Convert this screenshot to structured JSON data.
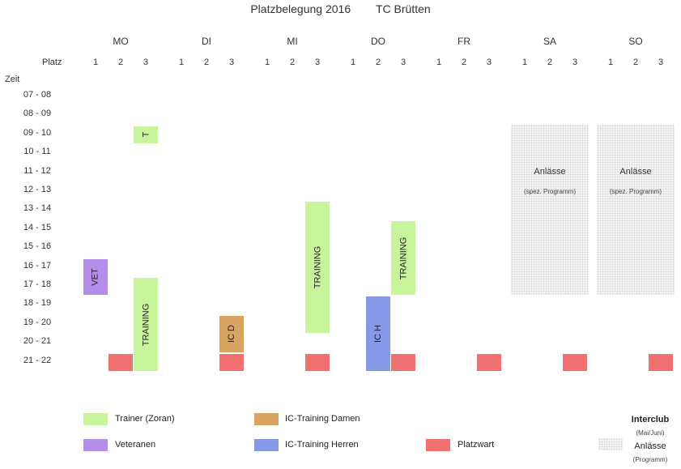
{
  "title": "Platzbelegung 2016        TC Brütten",
  "platz_label": "Platz",
  "zeit_label": "Zeit",
  "days": [
    "MO",
    "DI",
    "MI",
    "DO",
    "FR",
    "SA",
    "SO"
  ],
  "courts": [
    "1",
    "2",
    "3"
  ],
  "time_slots": [
    "07 - 08",
    "08 - 09",
    "09 - 10",
    "10 - 11",
    "11 - 12",
    "12 - 13",
    "13 - 14",
    "14 - 15",
    "15 - 16",
    "16 - 17",
    "17 - 18",
    "18 - 19",
    "19 - 20",
    "20 - 21",
    "21 - 22"
  ],
  "blocks": [
    {
      "day": 0,
      "court": 2,
      "start": 2,
      "end": 3,
      "type": "trainer",
      "label": "T"
    },
    {
      "day": 0,
      "court": 0,
      "start": 9,
      "end": 11,
      "type": "veteranen",
      "label": "VET"
    },
    {
      "day": 0,
      "court": 2,
      "start": 10,
      "end": 15,
      "type": "trainer",
      "label": "TRAINING"
    },
    {
      "day": 2,
      "court": 2,
      "start": 6,
      "end": 13,
      "type": "trainer",
      "label": "TRAINING"
    },
    {
      "day": 3,
      "court": 2,
      "start": 7,
      "end": 11,
      "type": "trainer",
      "label": "TRAINING"
    },
    {
      "day": 1,
      "court": 2,
      "start": 12,
      "end": 14,
      "type": "ic_damen",
      "label": "IC D"
    },
    {
      "day": 3,
      "court": 1,
      "start": 11,
      "end": 15,
      "type": "ic_herren",
      "label": "IC H"
    },
    {
      "day": 0,
      "court": 1,
      "start": 14,
      "end": 15,
      "type": "platzwart",
      "label": ""
    },
    {
      "day": 1,
      "court": 2,
      "start": 14,
      "end": 15,
      "type": "platzwart",
      "label": ""
    },
    {
      "day": 2,
      "court": 2,
      "start": 14,
      "end": 15,
      "type": "platzwart",
      "label": ""
    },
    {
      "day": 3,
      "court": 2,
      "start": 14,
      "end": 15,
      "type": "platzwart",
      "label": ""
    },
    {
      "day": 4,
      "court": 2,
      "start": 14,
      "end": 15,
      "type": "platzwart",
      "label": ""
    },
    {
      "day": 5,
      "court": 2,
      "start": 14,
      "end": 15,
      "type": "platzwart",
      "label": ""
    },
    {
      "day": 6,
      "court": 2,
      "start": 14,
      "end": 15,
      "type": "platzwart",
      "label": ""
    }
  ],
  "anlaesse_blocks": [
    {
      "day": 5,
      "title": "Anlässe",
      "sub": "(spez. Programm)"
    },
    {
      "day": 6,
      "title": "Anlässe",
      "sub": "(spez. Programm)"
    }
  ],
  "colors": {
    "trainer": "#c8f59c",
    "veteranen": "#b48ee8",
    "ic_damen": "#d9a360",
    "ic_herren": "#8698e8",
    "platzwart": "#f07070"
  },
  "legend": {
    "trainer": "Trainer (Zoran)",
    "veteranen": "Veteranen",
    "ic_damen": "IC-Training Damen",
    "ic_herren": "IC-Training Herren",
    "platzwart": "Platzwart",
    "interclub": "Interclub",
    "interclub_sub": "(Mai/Juni)",
    "anlaesse": "Anlässe",
    "anlaesse_sub": "(Programm)"
  }
}
